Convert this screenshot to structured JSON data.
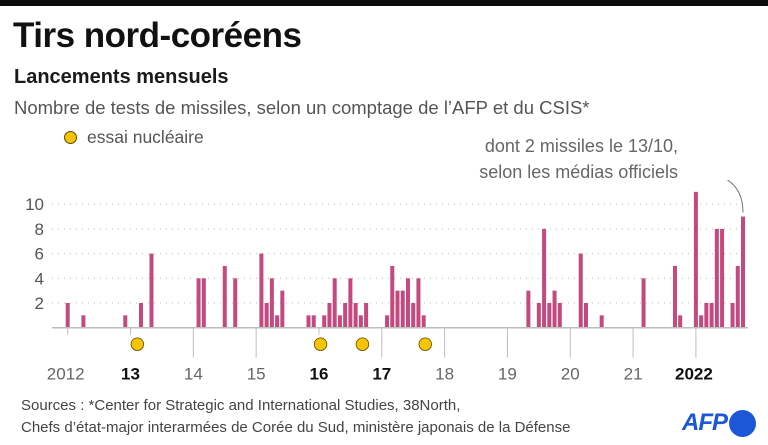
{
  "header": {
    "title": "Tirs nord-coréens",
    "subtitle": "Lancements mensuels",
    "description": "Nombre de tests de missiles, selon un comptage de l’AFP et du CSIS*",
    "legend_label": "essai nucléaire"
  },
  "annotation": {
    "line1": "dont 2 missiles le 13/10,",
    "line2": "selon les médias officiels"
  },
  "footer": {
    "sources_line1": "Sources : *Center for Strategic and International Studies, 38North,",
    "sources_line2": "Chefs d’état-major interarmées de Corée du Sud, ministère japonais de la Défense",
    "logo_text": "AFP"
  },
  "colors": {
    "bar": "#c4497f",
    "nuclear": "#f6c400",
    "nuclear_outline": "#5a4a00",
    "grid": "#b9b9b9",
    "axis": "#bdbdbd",
    "brand": "#1b57d6"
  },
  "chart_data": {
    "type": "bar",
    "title": "Tirs nord-coréens — Lancements mensuels",
    "xlabel": "",
    "ylabel": "Nombre de tests de missiles",
    "ylim": [
      0,
      11
    ],
    "yticks": [
      2,
      4,
      6,
      8,
      10
    ],
    "grid": true,
    "x_start": "2012-01",
    "x_end": "2022-10",
    "year_ticks": [
      {
        "year": 2012,
        "label": "2012",
        "bold": false,
        "short": true
      },
      {
        "year": 2013,
        "label": "13",
        "bold": true,
        "short": true
      },
      {
        "year": 2014,
        "label": "14",
        "bold": false,
        "short": false
      },
      {
        "year": 2015,
        "label": "15",
        "bold": false,
        "short": false
      },
      {
        "year": 2016,
        "label": "16",
        "bold": true,
        "short": true
      },
      {
        "year": 2017,
        "label": "17",
        "bold": true,
        "short": false
      },
      {
        "year": 2018,
        "label": "18",
        "bold": false,
        "short": false
      },
      {
        "year": 2019,
        "label": "19",
        "bold": false,
        "short": false
      },
      {
        "year": 2020,
        "label": "20",
        "bold": false,
        "short": false
      },
      {
        "year": 2021,
        "label": "21",
        "bold": false,
        "short": false
      },
      {
        "year": 2022,
        "label": "2022",
        "bold": true,
        "short": false
      }
    ],
    "series": [
      {
        "name": "Tests de missiles",
        "points": [
          {
            "month": "2012-01",
            "value": 2
          },
          {
            "month": "2012-04",
            "value": 1
          },
          {
            "month": "2012-12",
            "value": 1
          },
          {
            "month": "2013-03",
            "value": 2
          },
          {
            "month": "2013-05",
            "value": 6
          },
          {
            "month": "2014-02",
            "value": 4
          },
          {
            "month": "2014-03",
            "value": 4
          },
          {
            "month": "2014-07",
            "value": 5
          },
          {
            "month": "2014-09",
            "value": 4
          },
          {
            "month": "2015-02",
            "value": 6
          },
          {
            "month": "2015-03",
            "value": 2
          },
          {
            "month": "2015-04",
            "value": 4
          },
          {
            "month": "2015-05",
            "value": 1
          },
          {
            "month": "2015-06",
            "value": 3
          },
          {
            "month": "2015-11",
            "value": 1
          },
          {
            "month": "2015-12",
            "value": 1
          },
          {
            "month": "2016-02",
            "value": 1
          },
          {
            "month": "2016-03",
            "value": 2
          },
          {
            "month": "2016-04",
            "value": 4
          },
          {
            "month": "2016-05",
            "value": 1
          },
          {
            "month": "2016-06",
            "value": 2
          },
          {
            "month": "2016-07",
            "value": 4
          },
          {
            "month": "2016-08",
            "value": 2
          },
          {
            "month": "2016-09",
            "value": 1
          },
          {
            "month": "2016-10",
            "value": 2
          },
          {
            "month": "2017-02",
            "value": 1
          },
          {
            "month": "2017-03",
            "value": 5
          },
          {
            "month": "2017-04",
            "value": 3
          },
          {
            "month": "2017-05",
            "value": 3
          },
          {
            "month": "2017-06",
            "value": 4
          },
          {
            "month": "2017-07",
            "value": 2
          },
          {
            "month": "2017-08",
            "value": 4
          },
          {
            "month": "2017-09",
            "value": 1
          },
          {
            "month": "2019-05",
            "value": 3
          },
          {
            "month": "2019-07",
            "value": 2
          },
          {
            "month": "2019-08",
            "value": 8
          },
          {
            "month": "2019-09",
            "value": 2
          },
          {
            "month": "2019-10",
            "value": 3
          },
          {
            "month": "2019-11",
            "value": 2
          },
          {
            "month": "2020-03",
            "value": 6
          },
          {
            "month": "2020-04",
            "value": 2
          },
          {
            "month": "2020-07",
            "value": 1
          },
          {
            "month": "2021-03",
            "value": 4
          },
          {
            "month": "2021-09",
            "value": 5
          },
          {
            "month": "2021-10",
            "value": 1
          },
          {
            "month": "2022-01",
            "value": 11
          },
          {
            "month": "2022-02",
            "value": 1
          },
          {
            "month": "2022-03",
            "value": 2
          },
          {
            "month": "2022-04",
            "value": 2
          },
          {
            "month": "2022-05",
            "value": 8
          },
          {
            "month": "2022-06",
            "value": 8
          },
          {
            "month": "2022-08",
            "value": 2
          },
          {
            "month": "2022-09",
            "value": 5
          },
          {
            "month": "2022-10",
            "value": 9
          }
        ]
      }
    ],
    "nuclear_tests": [
      {
        "month": "2013-02",
        "label": "essai nucléaire"
      },
      {
        "month": "2016-01",
        "label": "essai nucléaire"
      },
      {
        "month": "2016-09",
        "label": "essai nucléaire"
      },
      {
        "month": "2017-09",
        "label": "essai nucléaire"
      }
    ],
    "legend": [
      {
        "label": "essai nucléaire",
        "marker": "circle",
        "color": "#f6c400",
        "placement": "top-left"
      }
    ],
    "annotations": [
      {
        "target": "2022-10",
        "text": "dont 2 missiles le 13/10, selon les médias officiels",
        "placement": "top-right"
      }
    ]
  }
}
